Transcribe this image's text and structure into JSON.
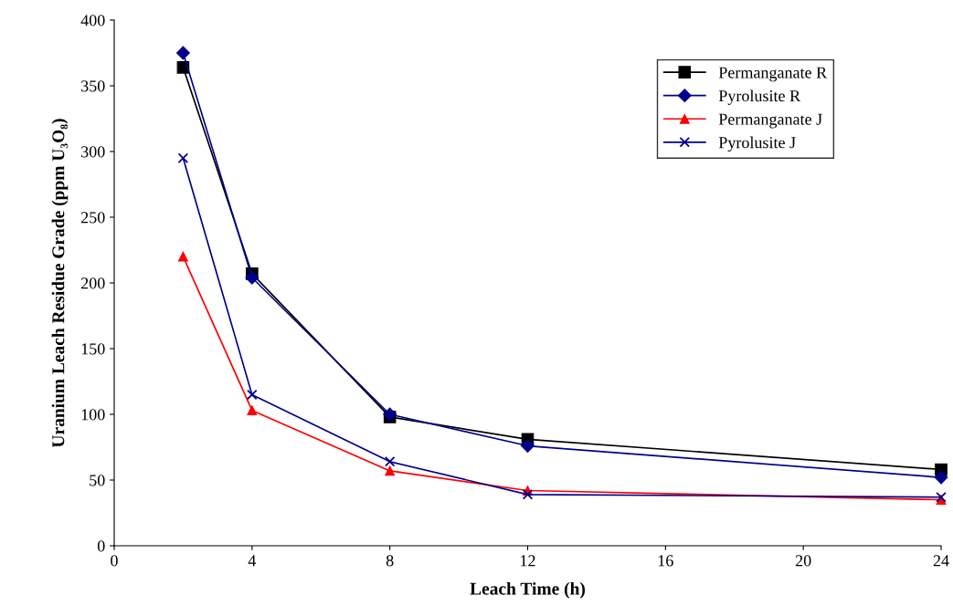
{
  "chart_data": {
    "type": "line",
    "xlabel": "Leach Time (h)",
    "ylabel": "Uranium Leach Residue Grade (ppm U₃O₈)",
    "x": [
      2,
      4,
      8,
      12,
      24
    ],
    "series": [
      {
        "name": "Permanganate R",
        "color": "#000000",
        "marker": "square",
        "values": [
          364,
          207,
          98,
          81,
          58
        ]
      },
      {
        "name": "Pyrolusite R",
        "color": "#00008b",
        "marker": "diamond",
        "values": [
          375,
          204,
          100,
          76,
          52
        ]
      },
      {
        "name": "Permanganate J",
        "color": "#ff0000",
        "marker": "triangle",
        "values": [
          220,
          103,
          57,
          42,
          35
        ]
      },
      {
        "name": "Pyrolusite J",
        "color": "#00008b",
        "marker": "cross",
        "values": [
          295,
          115,
          64,
          39,
          37
        ]
      }
    ],
    "xlim": [
      0,
      24
    ],
    "xticks": [
      0,
      4,
      8,
      12,
      16,
      20,
      24
    ],
    "ylim": [
      0,
      400
    ],
    "yticks": [
      0,
      50,
      100,
      150,
      200,
      250,
      300,
      350,
      400
    ],
    "grid": false,
    "legend": "top right",
    "line_style": "solid"
  }
}
